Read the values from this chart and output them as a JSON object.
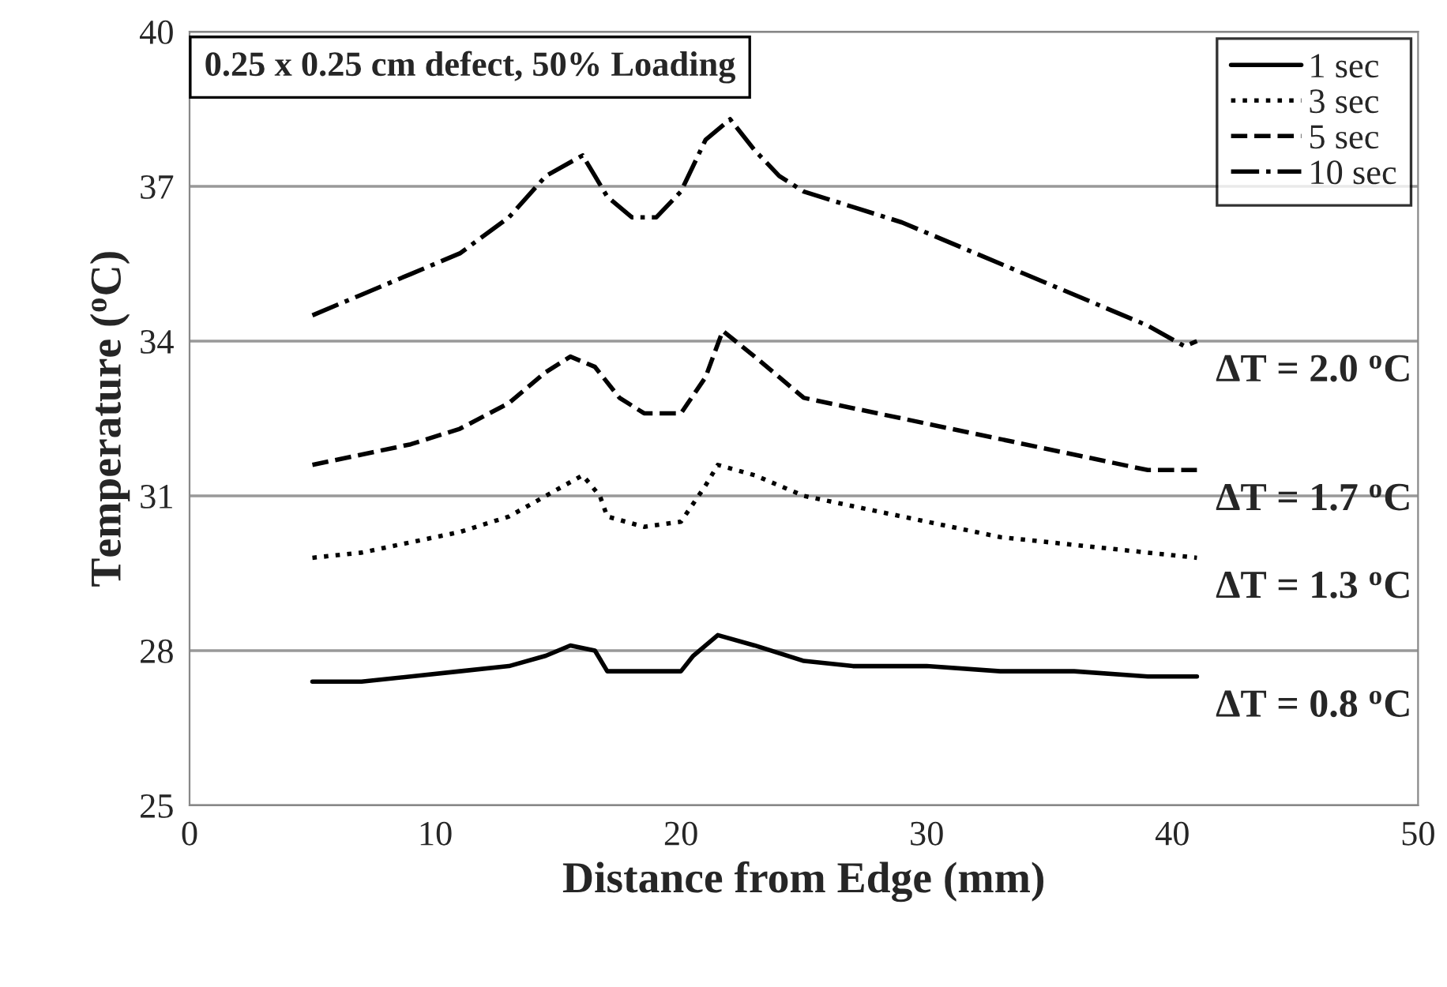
{
  "chart_data": {
    "type": "line",
    "xlabel": "Distance from Edge (mm)",
    "ylabel": "Temperature ($^{o}$C)",
    "xlim": [
      0,
      50
    ],
    "ylim": [
      25,
      40
    ],
    "xticks": [
      0,
      10,
      20,
      30,
      40,
      50
    ],
    "yticks": [
      25,
      28,
      31,
      34,
      37,
      40
    ],
    "grid": "y",
    "legend": "top right",
    "annotations": [
      "0.25 x 0.25 cm defect, 50% Loading",
      "ΔT = 2.0 $^{o}$C",
      "ΔT = 1.7 $^{o}$C",
      "ΔT = 1.3 $^{o}$C",
      "ΔT = 0.8 $^{o}$C"
    ],
    "series": [
      {
        "name": "1 sec",
        "color": "#000000",
        "line_style": "solid",
        "x": [
          5,
          7,
          9,
          11,
          13,
          14.5,
          15.5,
          16.5,
          17,
          19,
          20,
          20.5,
          21.5,
          23,
          25,
          27,
          30,
          33,
          36,
          39,
          41
        ],
        "values": [
          27.4,
          27.4,
          27.5,
          27.6,
          27.7,
          27.9,
          28.1,
          28.0,
          27.6,
          27.6,
          27.6,
          27.9,
          28.3,
          28.1,
          27.8,
          27.7,
          27.7,
          27.6,
          27.6,
          27.5,
          27.5
        ]
      },
      {
        "name": "3 sec",
        "color": "#000000",
        "line_style": "dotted",
        "x": [
          5,
          7,
          9,
          11,
          13,
          14.5,
          16,
          16.7,
          17,
          18.5,
          20,
          21,
          21.5,
          23,
          25,
          27,
          29,
          31,
          33,
          35,
          37,
          39,
          41
        ],
        "values": [
          29.8,
          29.9,
          30.1,
          30.3,
          30.6,
          31.0,
          31.4,
          31.0,
          30.6,
          30.4,
          30.5,
          31.2,
          31.6,
          31.4,
          31.0,
          30.8,
          30.6,
          30.4,
          30.2,
          30.1,
          30.0,
          29.9,
          29.8
        ]
      },
      {
        "name": "5 sec",
        "color": "#000000",
        "line_style": "dashed",
        "x": [
          5,
          7,
          9,
          11,
          13,
          14.5,
          15.5,
          16.5,
          17.5,
          18.5,
          20,
          21,
          21.7,
          23,
          24,
          25,
          27,
          29,
          31,
          33,
          35,
          37,
          39,
          40.5,
          41
        ],
        "values": [
          31.6,
          31.8,
          32.0,
          32.3,
          32.8,
          33.4,
          33.7,
          33.5,
          32.9,
          32.6,
          32.6,
          33.3,
          34.2,
          33.7,
          33.3,
          32.9,
          32.7,
          32.5,
          32.3,
          32.1,
          31.9,
          31.7,
          31.5,
          31.5,
          31.5
        ]
      },
      {
        "name": "10 sec",
        "color": "#000000",
        "line_style": "dashdot",
        "x": [
          5,
          7,
          9,
          11,
          13,
          14.5,
          16,
          16.5,
          17,
          18,
          19,
          20,
          21,
          22,
          23,
          24,
          25,
          27,
          29,
          31,
          33,
          35,
          37,
          39,
          40.5,
          41
        ],
        "values": [
          34.5,
          34.9,
          35.3,
          35.7,
          36.4,
          37.2,
          37.6,
          37.2,
          36.8,
          36.4,
          36.4,
          36.9,
          37.9,
          38.3,
          37.7,
          37.2,
          36.9,
          36.6,
          36.3,
          35.9,
          35.5,
          35.1,
          34.7,
          34.3,
          33.9,
          34.0
        ]
      }
    ]
  }
}
